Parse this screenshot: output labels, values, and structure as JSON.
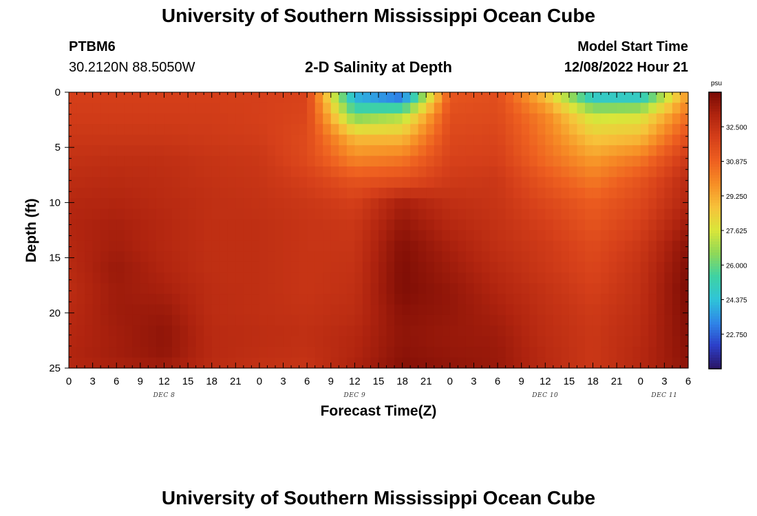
{
  "page": {
    "title_top": "University of Southern Mississippi Ocean Cube",
    "title_bottom": "University of Southern Mississippi Ocean Cube",
    "station_id": "PTBM6",
    "station_coords": "30.2120N  88.5050W",
    "model_start_label": "Model Start Time",
    "model_start_value": "12/08/2022 Hour 21"
  },
  "chart_data": {
    "type": "heatmap",
    "title": "2-D Salinity at Depth",
    "xlabel": "Forecast Time(Z)",
    "ylabel": "Depth (ft)",
    "units_label": "psu",
    "x_start_hour": 0,
    "x_step_hours": 3,
    "x_tick_labels": [
      "0",
      "3",
      "6",
      "9",
      "12",
      "15",
      "18",
      "21",
      "0",
      "3",
      "6",
      "9",
      "12",
      "15",
      "18",
      "21",
      "0",
      "3",
      "6",
      "9",
      "12",
      "15",
      "18",
      "21",
      "0",
      "3",
      "6"
    ],
    "day_labels": [
      {
        "label": "DEC 8",
        "hour": 12
      },
      {
        "label": "DEC 9",
        "hour": 36
      },
      {
        "label": "DEC 10",
        "hour": 60
      },
      {
        "label": "DEC 11",
        "hour": 75
      }
    ],
    "y_ticks": [
      0,
      5,
      10,
      15,
      20,
      25
    ],
    "ylim": [
      0,
      25
    ],
    "xlim": [
      0,
      78
    ],
    "colorbar": {
      "min": 21.125,
      "max": 34.125,
      "tick_values": [
        32.5,
        30.875,
        29.25,
        27.625,
        26.0,
        24.375,
        22.75
      ],
      "tick_labels": [
        "32.500",
        "30.875",
        "29.250",
        "27.625",
        "26.000",
        "24.375",
        "22.750"
      ],
      "colors": [
        "#2b1464",
        "#2c3fc8",
        "#2f86e8",
        "#2fc4d8",
        "#3ed2a4",
        "#8fd858",
        "#d9e63a",
        "#f7c23a",
        "#f78f26",
        "#ee6020",
        "#d6401a",
        "#b0240f",
        "#7a0b04"
      ]
    },
    "grid": false,
    "columns_hour": [
      0,
      6,
      12,
      18,
      24,
      30,
      36,
      42,
      48,
      54,
      60,
      66,
      72,
      78
    ],
    "rows_depth_ft": [
      0,
      2,
      4,
      6,
      8,
      10,
      12,
      14,
      16,
      18,
      20,
      22,
      24,
      25
    ],
    "salinity_psu": [
      [
        32.0,
        32.0,
        32.0,
        32.0,
        32.0,
        31.9,
        23.5,
        22.0,
        31.2,
        31.5,
        28.5,
        24.0,
        24.0,
        29.5
      ],
      [
        32.1,
        32.1,
        32.1,
        32.1,
        32.0,
        31.8,
        26.0,
        26.8,
        31.5,
        31.6,
        30.0,
        27.3,
        27.5,
        30.5
      ],
      [
        32.3,
        32.3,
        32.3,
        32.2,
        32.1,
        31.6,
        28.8,
        28.8,
        31.7,
        31.8,
        30.3,
        28.5,
        28.8,
        31.5
      ],
      [
        32.5,
        32.6,
        32.6,
        32.4,
        32.3,
        31.6,
        30.0,
        30.3,
        31.9,
        32.0,
        30.6,
        29.5,
        30.3,
        32.3
      ],
      [
        32.7,
        32.8,
        32.7,
        32.5,
        32.4,
        32.0,
        31.3,
        31.5,
        32.2,
        32.3,
        31.2,
        30.3,
        31.3,
        32.8
      ],
      [
        32.9,
        33.0,
        32.8,
        32.6,
        32.5,
        32.3,
        32.0,
        33.2,
        32.6,
        32.4,
        31.7,
        31.0,
        31.7,
        33.0
      ],
      [
        33.0,
        33.2,
        32.9,
        32.6,
        32.6,
        32.4,
        32.3,
        33.6,
        32.9,
        32.5,
        32.0,
        31.3,
        32.0,
        33.4
      ],
      [
        32.9,
        33.3,
        32.9,
        32.6,
        32.6,
        32.4,
        32.4,
        33.9,
        33.2,
        32.6,
        32.2,
        31.6,
        32.3,
        33.8
      ],
      [
        32.8,
        33.5,
        33.0,
        32.6,
        32.6,
        32.4,
        32.5,
        34.0,
        33.4,
        32.8,
        32.3,
        31.8,
        32.5,
        34.0
      ],
      [
        32.7,
        33.4,
        33.2,
        32.7,
        32.6,
        32.4,
        32.6,
        34.0,
        33.6,
        33.0,
        32.5,
        32.0,
        32.6,
        34.1
      ],
      [
        32.8,
        33.4,
        33.5,
        32.7,
        32.6,
        32.5,
        32.7,
        33.8,
        33.6,
        33.2,
        32.6,
        32.2,
        32.7,
        34.0
      ],
      [
        32.9,
        33.3,
        33.7,
        32.8,
        32.7,
        32.6,
        32.9,
        33.7,
        33.5,
        33.4,
        32.7,
        32.3,
        32.8,
        33.9
      ],
      [
        33.0,
        33.3,
        33.6,
        32.8,
        32.6,
        32.5,
        33.0,
        33.8,
        33.6,
        33.5,
        32.8,
        32.3,
        32.9,
        33.8
      ],
      [
        32.9,
        33.1,
        33.3,
        32.7,
        32.5,
        32.4,
        33.1,
        33.9,
        33.7,
        33.5,
        32.8,
        32.3,
        32.9,
        33.7
      ]
    ]
  }
}
